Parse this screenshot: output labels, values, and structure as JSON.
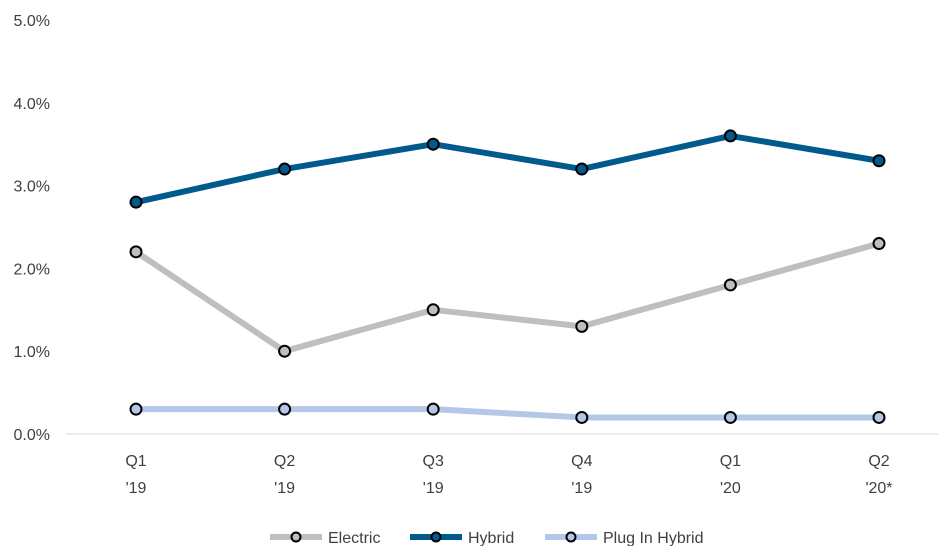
{
  "chart_data": {
    "type": "line",
    "categories": [
      [
        "Q1",
        "'19"
      ],
      [
        "Q2",
        "'19"
      ],
      [
        "Q3",
        "'19"
      ],
      [
        "Q4",
        "'19"
      ],
      [
        "Q1",
        "'20"
      ],
      [
        "Q2",
        "'20*"
      ]
    ],
    "series": [
      {
        "name": "Electric",
        "values": [
          2.2,
          1.0,
          1.5,
          1.3,
          1.8,
          2.3
        ],
        "color": "#bfbfbf"
      },
      {
        "name": "Hybrid",
        "values": [
          2.8,
          3.2,
          3.5,
          3.2,
          3.6,
          3.3
        ],
        "color": "#005a8c"
      },
      {
        "name": "Plug In Hybrid",
        "values": [
          0.3,
          0.3,
          0.3,
          0.2,
          0.2,
          0.2
        ],
        "color": "#b4c7e7"
      }
    ],
    "ylim": [
      0,
      5
    ],
    "yticks": [
      "0.0%",
      "1.0%",
      "2.0%",
      "3.0%",
      "4.0%",
      "5.0%"
    ],
    "grid": false,
    "legend_position": "bottom"
  }
}
